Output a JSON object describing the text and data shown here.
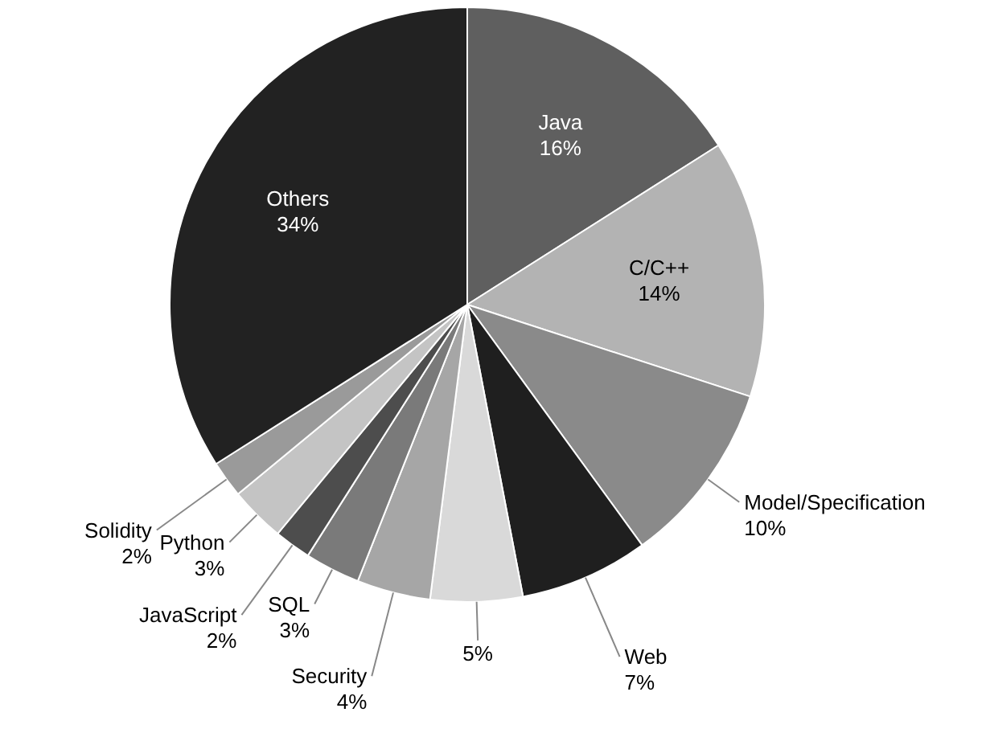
{
  "chart_data": {
    "type": "pie",
    "categories": [
      "Java",
      "C/C++",
      "Model/Specification",
      "Web",
      null,
      "Security",
      "SQL",
      "JavaScript",
      "Python",
      "Solidity",
      "Others"
    ],
    "values": [
      16,
      14,
      10,
      7,
      5,
      4,
      3,
      2,
      3,
      2,
      34
    ],
    "colors": [
      "#5f5f5f",
      "#b3b3b3",
      "#8a8a8a",
      "#1f1f1f",
      "#d9d9d9",
      "#a6a6a6",
      "#7a7a7a",
      "#4d4d4d",
      "#c4c4c4",
      "#9a9a9a",
      "#222222"
    ],
    "value_labels": [
      "16%",
      "14%",
      "10%",
      "7%",
      "5%",
      "4%",
      "3%",
      "2%",
      "3%",
      "2%",
      "34%"
    ]
  }
}
